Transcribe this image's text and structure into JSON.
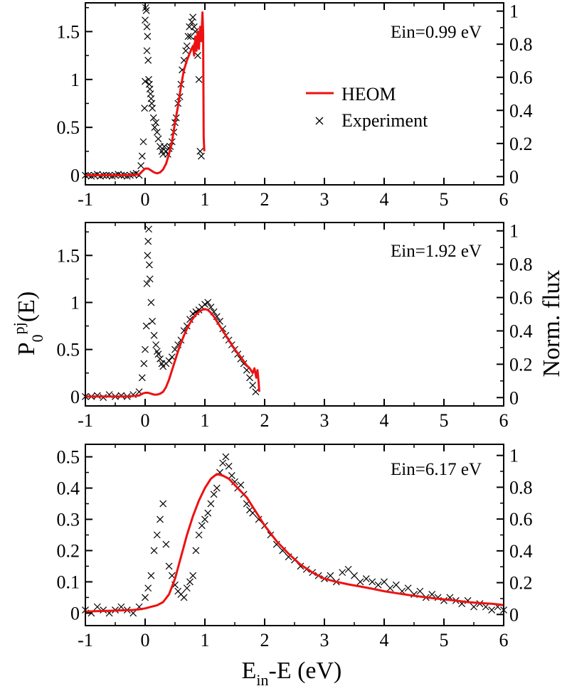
{
  "chart_data": {
    "type": "line",
    "xlabel": "E_in-E (eV)",
    "xlabel_main": "E",
    "xlabel_sub": "in",
    "xlabel_rest": "-E (eV)",
    "ylabel_left": "P_0^pj(E)",
    "ylabel_left_main": "P",
    "ylabel_left_sub": "0",
    "ylabel_left_sup": "pj",
    "ylabel_left_rest": "(E)",
    "ylabel_right": "Norm. flux",
    "legend": {
      "placement": "center-right of top panel",
      "entries": [
        {
          "label": "HEOM",
          "style": "line",
          "color": "#ee1111"
        },
        {
          "label": "Experiment",
          "style": "x-marker",
          "color": "#000000"
        }
      ]
    },
    "xlim": [
      -1,
      6
    ],
    "x_ticks": [
      "-1",
      "0",
      "1",
      "2",
      "3",
      "4",
      "5",
      "6"
    ],
    "panels": [
      {
        "annotation": "Ein=0.99 eV",
        "ylim_left": [
          -0.1,
          1.8
        ],
        "y_ticks_left": [
          "0",
          "0.5",
          "1",
          "1.5"
        ],
        "ylim_right": [
          -0.05,
          1.05
        ],
        "y_ticks_right": [
          "0",
          "0.2",
          "0.4",
          "0.6",
          "0.8",
          "1"
        ],
        "heom": {
          "x": [
            -1.0,
            -0.3,
            -0.1,
            -0.05,
            0.0,
            0.05,
            0.1,
            0.15,
            0.2,
            0.25,
            0.3,
            0.35,
            0.4,
            0.45,
            0.5,
            0.55,
            0.6,
            0.65,
            0.7,
            0.75,
            0.8,
            0.82,
            0.84,
            0.86,
            0.88,
            0.9,
            0.92,
            0.94,
            0.96,
            0.97,
            0.98,
            0.99
          ],
          "y": [
            0.0,
            0.0,
            0.01,
            0.04,
            0.07,
            0.07,
            0.05,
            0.03,
            0.02,
            0.03,
            0.06,
            0.12,
            0.22,
            0.35,
            0.55,
            0.72,
            0.93,
            1.1,
            1.2,
            1.28,
            1.35,
            1.25,
            1.45,
            1.3,
            1.5,
            1.32,
            1.55,
            1.4,
            1.7,
            1.5,
            0.4,
            0.25
          ]
        },
        "experiment": {
          "x": [
            -1.0,
            -0.95,
            -0.9,
            -0.85,
            -0.8,
            -0.75,
            -0.7,
            -0.65,
            -0.6,
            -0.55,
            -0.5,
            -0.45,
            -0.4,
            -0.35,
            -0.3,
            -0.25,
            -0.2,
            -0.15,
            -0.1,
            -0.07,
            -0.05,
            -0.03,
            -0.01,
            0.0,
            0.0,
            0.01,
            0.02,
            0.03,
            0.03,
            0.04,
            0.05,
            0.06,
            0.07,
            0.08,
            0.09,
            0.1,
            0.11,
            0.12,
            0.14,
            0.16,
            0.18,
            0.2,
            0.22,
            0.25,
            0.28,
            0.3,
            0.32,
            0.35,
            0.38,
            0.4,
            0.42,
            0.45,
            0.48,
            0.5,
            0.52,
            0.55,
            0.58,
            0.6,
            0.62,
            0.65,
            0.68,
            0.7,
            0.72,
            0.74,
            0.76,
            0.78,
            0.8,
            0.82,
            0.84,
            0.86,
            0.88,
            0.9,
            0.92,
            0.94
          ],
          "y": [
            0.0,
            0.0,
            -0.01,
            0.0,
            0.01,
            -0.01,
            0.0,
            0.0,
            0.0,
            -0.01,
            0.0,
            0.01,
            0.0,
            0.0,
            -0.01,
            0.0,
            0.01,
            0.02,
            0.0,
            0.1,
            0.2,
            0.35,
            0.7,
            0.98,
            1.62,
            1.75,
            1.72,
            1.55,
            1.3,
            1.45,
            1.2,
            1.0,
            0.95,
            0.9,
            0.85,
            0.8,
            0.75,
            0.7,
            0.6,
            0.5,
            0.55,
            0.45,
            0.38,
            0.3,
            0.25,
            0.22,
            0.3,
            0.25,
            0.22,
            0.28,
            0.3,
            0.35,
            0.45,
            0.55,
            0.6,
            0.75,
            0.82,
            0.95,
            1.1,
            1.2,
            1.3,
            1.35,
            1.45,
            1.55,
            1.45,
            1.6,
            1.65,
            1.55,
            1.5,
            1.4,
            1.25,
            1.0,
            0.25,
            0.2
          ]
        }
      },
      {
        "annotation": "Ein=1.92 eV",
        "ylim_left": [
          -0.1,
          1.85
        ],
        "y_ticks_left": [
          "0",
          "0.5",
          "1",
          "1.5"
        ],
        "ylim_right": [
          -0.05,
          1.05
        ],
        "y_ticks_right": [
          "0",
          "0.2",
          "0.4",
          "0.6",
          "0.8",
          "1"
        ],
        "heom": {
          "x": [
            -1.0,
            -0.3,
            -0.1,
            -0.05,
            0.0,
            0.05,
            0.1,
            0.15,
            0.2,
            0.25,
            0.3,
            0.35,
            0.4,
            0.45,
            0.5,
            0.55,
            0.6,
            0.65,
            0.7,
            0.75,
            0.8,
            0.85,
            0.9,
            0.95,
            1.0,
            1.05,
            1.1,
            1.15,
            1.2,
            1.3,
            1.4,
            1.5,
            1.6,
            1.7,
            1.75,
            1.8,
            1.83,
            1.86,
            1.88,
            1.9,
            1.91
          ],
          "y": [
            0.0,
            0.0,
            0.01,
            0.03,
            0.04,
            0.04,
            0.03,
            0.02,
            0.02,
            0.03,
            0.05,
            0.1,
            0.18,
            0.28,
            0.38,
            0.48,
            0.57,
            0.65,
            0.72,
            0.78,
            0.83,
            0.87,
            0.9,
            0.92,
            0.93,
            0.92,
            0.89,
            0.85,
            0.8,
            0.7,
            0.6,
            0.5,
            0.42,
            0.33,
            0.3,
            0.25,
            0.3,
            0.2,
            0.28,
            0.15,
            0.05
          ]
        },
        "experiment": {
          "x": [
            -1.0,
            -0.9,
            -0.8,
            -0.7,
            -0.6,
            -0.5,
            -0.4,
            -0.3,
            -0.2,
            -0.1,
            -0.05,
            -0.02,
            0.0,
            0.02,
            0.03,
            0.04,
            0.05,
            0.06,
            0.07,
            0.08,
            0.1,
            0.12,
            0.15,
            0.18,
            0.2,
            0.22,
            0.25,
            0.28,
            0.3,
            0.35,
            0.4,
            0.45,
            0.5,
            0.55,
            0.6,
            0.65,
            0.7,
            0.75,
            0.8,
            0.85,
            0.9,
            0.95,
            1.0,
            1.05,
            1.1,
            1.15,
            1.2,
            1.25,
            1.3,
            1.35,
            1.4,
            1.45,
            1.5,
            1.55,
            1.6,
            1.65,
            1.7,
            1.75,
            1.8,
            1.85
          ],
          "y": [
            0.0,
            0.0,
            0.01,
            -0.01,
            0.02,
            0.0,
            0.01,
            0.0,
            0.02,
            0.05,
            0.2,
            0.35,
            0.5,
            0.75,
            1.2,
            1.5,
            1.65,
            1.78,
            1.4,
            1.25,
            1.0,
            0.8,
            0.65,
            0.55,
            0.48,
            0.45,
            0.4,
            0.35,
            0.32,
            0.35,
            0.38,
            0.42,
            0.5,
            0.55,
            0.6,
            0.7,
            0.75,
            0.82,
            0.88,
            0.9,
            0.92,
            0.95,
            0.98,
            1.0,
            0.95,
            0.9,
            0.85,
            0.8,
            0.72,
            0.65,
            0.6,
            0.55,
            0.5,
            0.45,
            0.4,
            0.35,
            0.28,
            0.2,
            0.12,
            0.05
          ]
        }
      },
      {
        "annotation": "Ein=6.17 eV",
        "ylim_left": [
          -0.04,
          0.54
        ],
        "y_ticks_left": [
          "0",
          "0.1",
          "0.2",
          "0.3",
          "0.4",
          "0.5"
        ],
        "ylim_right": [
          -0.07,
          1.07
        ],
        "y_ticks_right": [
          "0",
          "0.2",
          "0.4",
          "0.6",
          "0.8",
          "1"
        ],
        "heom": {
          "x": [
            -1.0,
            -0.5,
            -0.2,
            -0.1,
            0.0,
            0.1,
            0.2,
            0.3,
            0.4,
            0.5,
            0.6,
            0.7,
            0.8,
            0.9,
            1.0,
            1.1,
            1.2,
            1.3,
            1.4,
            1.5,
            1.6,
            1.7,
            1.8,
            1.9,
            2.0,
            2.2,
            2.4,
            2.6,
            2.8,
            3.0,
            3.2,
            3.4,
            3.6,
            3.8,
            4.0,
            4.2,
            4.4,
            4.6,
            4.8,
            5.0,
            5.2,
            5.4,
            5.6,
            5.8,
            5.9,
            6.0
          ],
          "y": [
            0.005,
            0.008,
            0.01,
            0.012,
            0.015,
            0.02,
            0.025,
            0.035,
            0.06,
            0.11,
            0.18,
            0.25,
            0.31,
            0.36,
            0.4,
            0.43,
            0.445,
            0.44,
            0.43,
            0.41,
            0.39,
            0.37,
            0.34,
            0.31,
            0.28,
            0.23,
            0.19,
            0.155,
            0.13,
            0.11,
            0.1,
            0.092,
            0.085,
            0.078,
            0.07,
            0.064,
            0.058,
            0.053,
            0.048,
            0.044,
            0.04,
            0.035,
            0.032,
            0.03,
            0.028,
            0.025
          ]
        },
        "experiment": {
          "x": [
            -1.0,
            -0.9,
            -0.8,
            -0.7,
            -0.6,
            -0.5,
            -0.4,
            -0.3,
            -0.2,
            -0.1,
            0.0,
            0.05,
            0.1,
            0.15,
            0.2,
            0.25,
            0.3,
            0.35,
            0.4,
            0.45,
            0.5,
            0.55,
            0.6,
            0.65,
            0.7,
            0.75,
            0.8,
            0.85,
            0.9,
            0.95,
            1.0,
            1.05,
            1.1,
            1.15,
            1.2,
            1.25,
            1.3,
            1.35,
            1.4,
            1.45,
            1.5,
            1.55,
            1.6,
            1.65,
            1.7,
            1.75,
            1.8,
            1.9,
            2.0,
            2.1,
            2.2,
            2.3,
            2.4,
            2.5,
            2.6,
            2.7,
            2.8,
            2.9,
            3.0,
            3.1,
            3.2,
            3.3,
            3.4,
            3.5,
            3.6,
            3.7,
            3.8,
            3.9,
            4.0,
            4.1,
            4.2,
            4.3,
            4.4,
            4.5,
            4.6,
            4.7,
            4.8,
            4.9,
            5.0,
            5.1,
            5.2,
            5.3,
            5.4,
            5.5,
            5.6,
            5.7,
            5.8,
            5.9,
            6.0
          ],
          "y": [
            0.01,
            0.0,
            0.02,
            0.01,
            0.0,
            0.01,
            0.02,
            0.01,
            0.0,
            0.02,
            0.05,
            0.08,
            0.12,
            0.2,
            0.25,
            0.3,
            0.35,
            0.22,
            0.15,
            0.12,
            0.09,
            0.07,
            0.06,
            0.05,
            0.08,
            0.1,
            0.12,
            0.2,
            0.25,
            0.28,
            0.3,
            0.32,
            0.35,
            0.38,
            0.4,
            0.45,
            0.48,
            0.5,
            0.47,
            0.44,
            0.42,
            0.4,
            0.41,
            0.38,
            0.35,
            0.33,
            0.32,
            0.3,
            0.28,
            0.25,
            0.22,
            0.2,
            0.18,
            0.17,
            0.15,
            0.14,
            0.13,
            0.12,
            0.11,
            0.12,
            0.1,
            0.13,
            0.14,
            0.12,
            0.1,
            0.11,
            0.1,
            0.09,
            0.1,
            0.08,
            0.09,
            0.07,
            0.08,
            0.06,
            0.07,
            0.05,
            0.06,
            0.05,
            0.04,
            0.05,
            0.04,
            0.03,
            0.04,
            0.02,
            0.03,
            0.02,
            0.01,
            0.02,
            0.01
          ]
        }
      }
    ]
  }
}
